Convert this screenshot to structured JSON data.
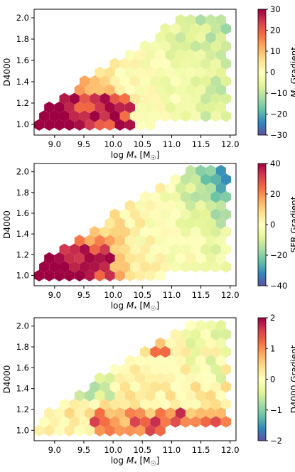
{
  "chart_data": [
    {
      "type": "heatmap",
      "subtype": "hexbin",
      "xlabel": "log M* [M☉]",
      "ylabel": "D4000",
      "xlim": [
        8.65,
        12.1
      ],
      "ylim": [
        0.9,
        2.08
      ],
      "xticks": [
        "9.0",
        "9.5",
        "10.0",
        "10.5",
        "11.0",
        "11.5",
        "12.0"
      ],
      "yticks": [
        "1.0",
        "1.2",
        "1.4",
        "1.6",
        "1.8",
        "2.0"
      ],
      "colorbar": {
        "label": "M* Gradient",
        "min": -30,
        "max": 30,
        "ticks": [
          "30",
          "20",
          "10",
          "0",
          "−10",
          "−20",
          "−30"
        ],
        "cmap": "Spectral_r"
      },
      "pattern": "strongly positive (red) at low stellar mass and low D4000; near zero to negative (green/blue) at high stellar mass and high D4000"
    },
    {
      "type": "heatmap",
      "subtype": "hexbin",
      "xlabel": "log M* [M☉]",
      "ylabel": "D4000",
      "xlim": [
        8.65,
        12.1
      ],
      "ylim": [
        0.9,
        2.08
      ],
      "xticks": [
        "9.0",
        "9.5",
        "10.0",
        "10.5",
        "11.0",
        "11.5",
        "12.0"
      ],
      "yticks": [
        "1.0",
        "1.2",
        "1.4",
        "1.6",
        "1.8",
        "2.0"
      ],
      "colorbar": {
        "label": "SFR Gradient",
        "min": -40,
        "max": 40,
        "ticks": [
          "40",
          "20",
          "0",
          "−20",
          "−40"
        ],
        "cmap": "Spectral_r"
      },
      "pattern": "strongly positive (red) at low stellar mass and low D4000; negative (blue/green) at high stellar mass and high D4000"
    },
    {
      "type": "heatmap",
      "subtype": "hexbin",
      "xlabel": "log M* [M☉]",
      "ylabel": "D4000",
      "xlim": [
        8.65,
        12.1
      ],
      "ylim": [
        0.9,
        2.08
      ],
      "xticks": [
        "9.0",
        "9.5",
        "10.0",
        "10.5",
        "11.0",
        "11.5",
        "12.0"
      ],
      "yticks": [
        "1.0",
        "1.2",
        "1.4",
        "1.6",
        "1.8",
        "2.0"
      ],
      "colorbar": {
        "label": "D4000 Gradient",
        "min": -2,
        "max": 2,
        "ticks": [
          "2",
          "1",
          "0",
          "−1",
          "−2"
        ],
        "cmap": "Spectral_r"
      },
      "pattern": "negative (blue) at low stellar mass with D4000 ~1.3-1.6; positive (red) along low D4000 at high mass and scattered red at the top; mostly near zero elsewhere"
    }
  ]
}
